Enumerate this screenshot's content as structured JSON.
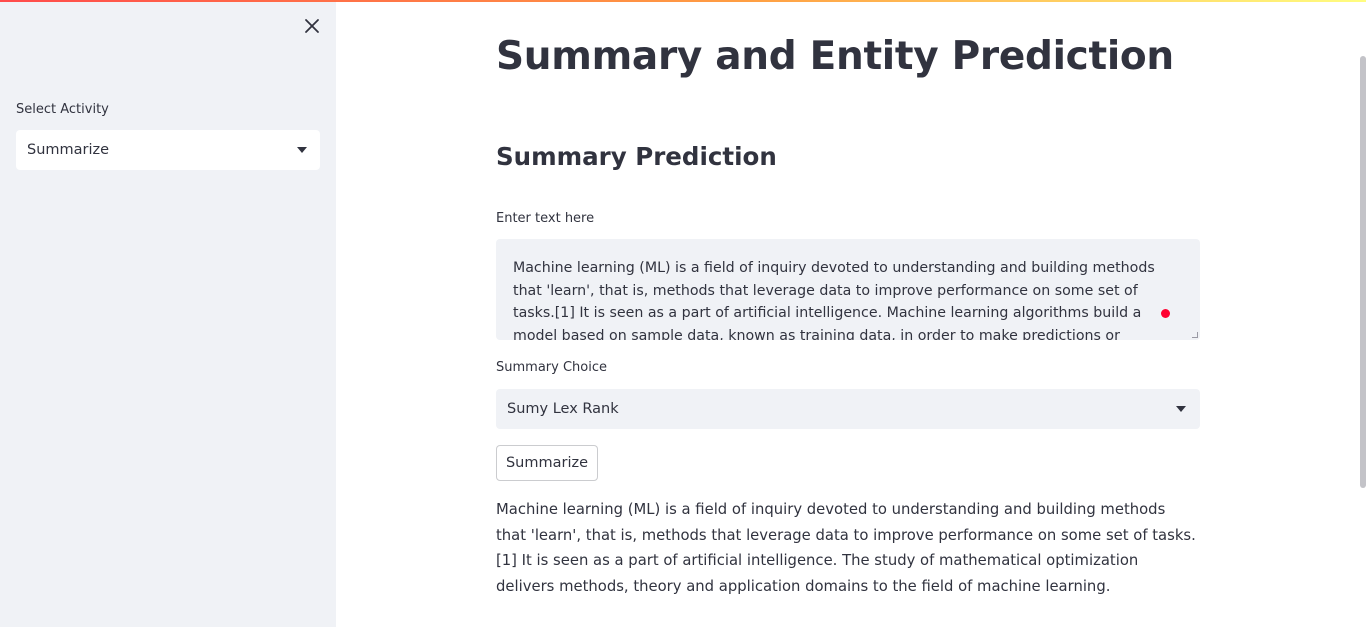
{
  "colors": {
    "accent": "#ff4b4b",
    "sidebar_bg": "#f0f2f6",
    "text": "#31333f",
    "cursor_marker": "#ff0030"
  },
  "sidebar": {
    "close_icon": "close-icon",
    "select_label": "Select Activity",
    "select_value": "Summarize"
  },
  "main": {
    "title": "Summary and Entity Prediction",
    "section_title": "Summary Prediction",
    "text_label": "Enter text here",
    "text_value": "Machine learning (ML) is a field of inquiry devoted to understanding and building methods that 'learn', that is, methods that leverage data to improve performance on some set of tasks.[1] It is seen as a part of artificial intelligence. Machine learning algorithms build a model based on sample data, known as training data, in order to make predictions or decisions without being explicitly",
    "choice_label": "Summary Choice",
    "choice_value": "Sumy Lex Rank",
    "button_label": "Summarize",
    "result_text": "Machine learning (ML) is a field of inquiry devoted to understanding and building methods that 'learn', that is, methods that leverage data to improve performance on some set of tasks. [1] It is seen as a part of artificial intelligence. The study of mathematical optimization delivers methods, theory and application domains to the field of machine learning."
  }
}
